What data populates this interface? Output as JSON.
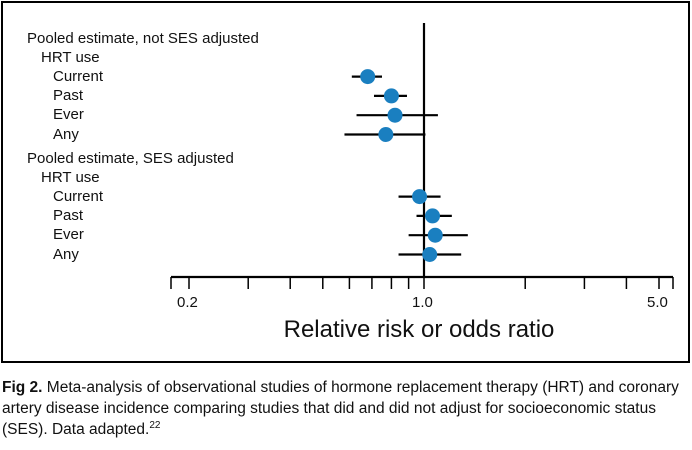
{
  "chart_data": {
    "type": "forest",
    "xlabel": "Relative risk or odds ratio",
    "x_scale": "log",
    "xlim": [
      0.15,
      6.5
    ],
    "reference_line": 1.0,
    "x_tick_labels": [
      {
        "value": 0.2,
        "label": "0.2"
      },
      {
        "value": 1.0,
        "label": "1.0"
      },
      {
        "value": 5.0,
        "label": "5.0"
      }
    ],
    "x_minor_ticks": [
      0.3,
      0.4,
      0.5,
      0.6,
      0.7,
      0.8,
      0.9,
      2,
      3,
      4
    ],
    "marker_color": "#1a7fc0",
    "groups": [
      {
        "title": "Pooled estimate, not SES adjusted",
        "subtitle": "HRT use",
        "rows": [
          {
            "label": "Current",
            "estimate": 0.68,
            "lower": 0.61,
            "upper": 0.75
          },
          {
            "label": "Past",
            "estimate": 0.8,
            "lower": 0.71,
            "upper": 0.89
          },
          {
            "label": "Ever",
            "estimate": 0.82,
            "lower": 0.63,
            "upper": 1.1
          },
          {
            "label": "Any",
            "estimate": 0.77,
            "lower": 0.58,
            "upper": 1.01
          }
        ]
      },
      {
        "title": "Pooled estimate, SES adjusted",
        "subtitle": "HRT use",
        "rows": [
          {
            "label": "Current",
            "estimate": 0.97,
            "lower": 0.84,
            "upper": 1.12
          },
          {
            "label": "Past",
            "estimate": 1.06,
            "lower": 0.95,
            "upper": 1.21
          },
          {
            "label": "Ever",
            "estimate": 1.08,
            "lower": 0.9,
            "upper": 1.35
          },
          {
            "label": "Any",
            "estimate": 1.04,
            "lower": 0.84,
            "upper": 1.29
          }
        ]
      }
    ]
  },
  "caption": {
    "figno": "Fig 2.",
    "text": "Meta-analysis of observational studies of hormone replacement therapy (HRT) and coronary artery disease incidence comparing studies that did and did not adjust for socioeconomic status (SES). Data adapted.",
    "ref": "22"
  }
}
